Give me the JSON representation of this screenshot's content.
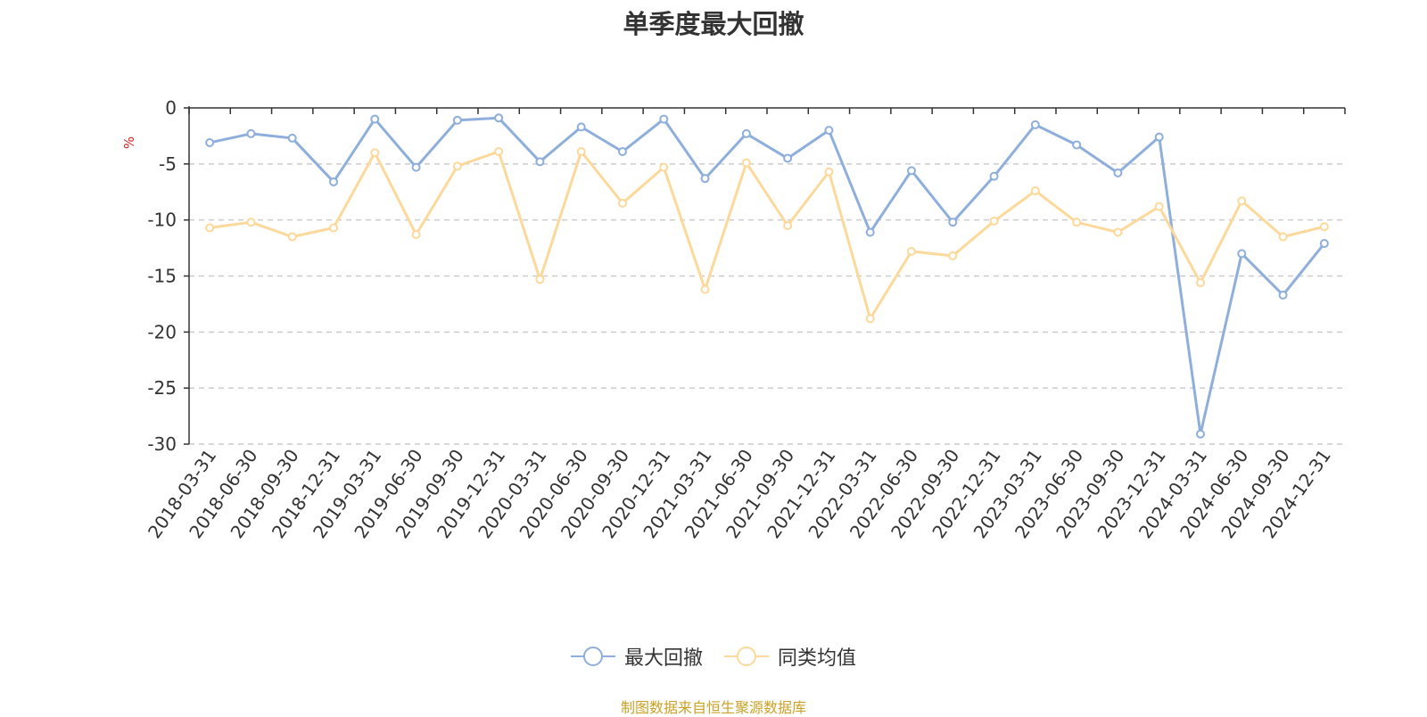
{
  "chart_data": {
    "type": "line",
    "title": "单季度最大回撤",
    "ylabel": "%",
    "xlabel": "",
    "ylim": [
      -30,
      0
    ],
    "yticks": [
      0,
      -5,
      -10,
      -15,
      -20,
      -25,
      -30
    ],
    "categories": [
      "2018-03-31",
      "2018-06-30",
      "2018-09-30",
      "2018-12-31",
      "2019-03-31",
      "2019-06-30",
      "2019-09-30",
      "2019-12-31",
      "2020-03-31",
      "2020-06-30",
      "2020-09-30",
      "2020-12-31",
      "2021-03-31",
      "2021-06-30",
      "2021-09-30",
      "2021-12-31",
      "2022-03-31",
      "2022-06-30",
      "2022-09-30",
      "2022-12-31",
      "2023-03-31",
      "2023-06-30",
      "2023-09-30",
      "2023-12-31",
      "2024-03-31",
      "2024-06-30",
      "2024-09-30",
      "2024-12-31"
    ],
    "series": [
      {
        "name": "最大回撤",
        "color": "#8eaedb",
        "values": [
          -3.1,
          -2.3,
          -2.7,
          -6.6,
          -1.0,
          -5.3,
          -1.1,
          -0.9,
          -4.8,
          -1.7,
          -3.9,
          -1.0,
          -6.3,
          -2.3,
          -4.5,
          -2.0,
          -11.1,
          -5.6,
          -10.2,
          -6.1,
          -1.5,
          -3.3,
          -5.8,
          -2.6,
          -29.1,
          -13.0,
          -16.7,
          -12.1
        ]
      },
      {
        "name": "同类均值",
        "color": "#fcd99a",
        "values": [
          -10.7,
          -10.2,
          -11.5,
          -10.7,
          -4.0,
          -11.3,
          -5.2,
          -3.9,
          -15.3,
          -3.9,
          -8.5,
          -5.3,
          -16.2,
          -4.9,
          -10.5,
          -5.7,
          -18.8,
          -12.8,
          -13.2,
          -10.1,
          -7.4,
          -10.2,
          -11.1,
          -8.8,
          -15.6,
          -8.3,
          -11.5,
          -10.6
        ]
      }
    ],
    "legend_position": "bottom-center",
    "grid": true
  },
  "source_note": "制图数据来自恒生聚源数据库"
}
